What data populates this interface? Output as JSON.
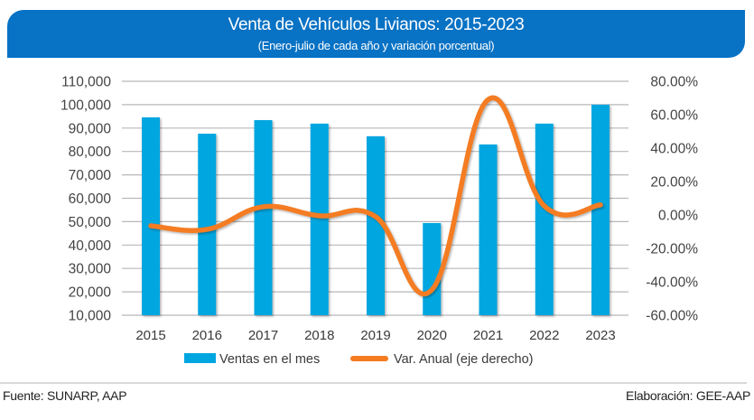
{
  "header": {
    "title": "Venta de Vehículos Livianos: 2015-2023",
    "subtitle": "(Enero-julio de cada año y variación porcentual)",
    "color": "#0872C4"
  },
  "footer": {
    "source": "Fuente: SUNARP, AAP",
    "credit": "Elaboración: GEE-AAP"
  },
  "colors": {
    "bars": "#00A6E0",
    "line": "#F47B20",
    "grid": "#b8b8b8"
  },
  "chart_data": {
    "type": "bar",
    "title": "Venta de Vehículos Livianos: 2015-2023",
    "subtitle": "(Enero-julio de cada año y variación porcentual)",
    "categories": [
      "2015",
      "2016",
      "2017",
      "2018",
      "2019",
      "2020",
      "2021",
      "2022",
      "2023"
    ],
    "series": [
      {
        "name": "Ventas en el mes",
        "type": "bar",
        "axis": "left",
        "values": [
          94600,
          87600,
          93400,
          91900,
          86500,
          49400,
          83000,
          91900,
          100000
        ]
      },
      {
        "name": "Var. Anual (eje derecho)",
        "type": "line",
        "axis": "right",
        "values": [
          -6.5,
          -8.6,
          4.9,
          -0.5,
          -1.0,
          -44.8,
          69.0,
          5.4,
          6.0
        ]
      }
    ],
    "y_left": {
      "ylim": [
        10000,
        110000
      ],
      "ticks": [
        10000,
        20000,
        30000,
        40000,
        50000,
        60000,
        70000,
        80000,
        90000,
        100000,
        110000
      ],
      "tick_labels": [
        "10,000",
        "20,000",
        "30,000",
        "40,000",
        "50,000",
        "60,000",
        "70,000",
        "80,000",
        "90,000",
        "100,000",
        "110,000"
      ]
    },
    "y_right": {
      "ylim": [
        -60,
        80
      ],
      "ticks": [
        -60,
        -40,
        -20,
        0,
        20,
        40,
        60,
        80
      ],
      "tick_labels": [
        "-60.00%",
        "-40.00%",
        "-20.00%",
        "0.00%",
        "20.00%",
        "40.00%",
        "60.00%",
        "80.00%"
      ]
    },
    "xlabel": "",
    "ylabel": "",
    "grid": true,
    "legend_position": "bottom"
  }
}
